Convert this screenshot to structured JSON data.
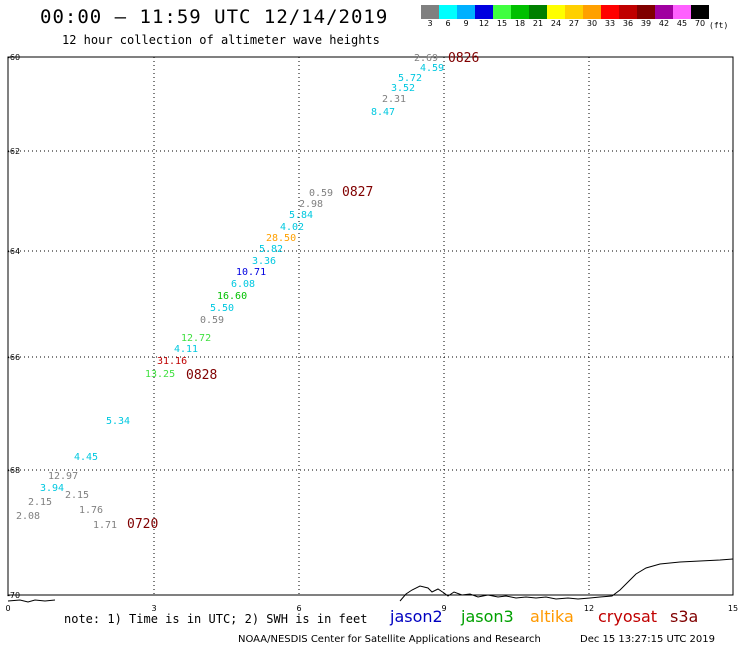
{
  "header": {
    "title": "00:00 – 11:59 UTC 12/14/2019",
    "subtitle": "12 hour collection of altimeter wave heights"
  },
  "legend_scale": {
    "unit": "(ft)",
    "items": [
      {
        "label": "3",
        "color": "#808080"
      },
      {
        "label": "6",
        "color": "#00ffff"
      },
      {
        "label": "9",
        "color": "#00b0ff"
      },
      {
        "label": "12",
        "color": "#0000e0"
      },
      {
        "label": "15",
        "color": "#40ff40"
      },
      {
        "label": "18",
        "color": "#00c000"
      },
      {
        "label": "21",
        "color": "#008000"
      },
      {
        "label": "24",
        "color": "#ffff00"
      },
      {
        "label": "27",
        "color": "#ffd000"
      },
      {
        "label": "30",
        "color": "#ffa000"
      },
      {
        "label": "33",
        "color": "#ff0000"
      },
      {
        "label": "36",
        "color": "#c00000"
      },
      {
        "label": "39",
        "color": "#800000"
      },
      {
        "label": "42",
        "color": "#a000a0"
      },
      {
        "label": "45",
        "color": "#ff60ff"
      },
      {
        "label": "70",
        "color": "#000000"
      }
    ]
  },
  "axes": {
    "x_ticks": [
      "0",
      "3",
      "6",
      "9",
      "12",
      "15"
    ],
    "y_ticks": [
      "-60",
      "-62",
      "-64",
      "-66",
      "-68",
      "-70"
    ]
  },
  "tracks": [
    {
      "time": "0826",
      "points": [
        {
          "v": "2.69",
          "c": "#808080"
        },
        {
          "v": "4.59",
          "c": "#00c8e0"
        },
        {
          "v": "5.72",
          "c": "#00c8e0"
        },
        {
          "v": "3.52",
          "c": "#00c8e0"
        },
        {
          "v": "2.31",
          "c": "#808080"
        },
        {
          "v": "8.47",
          "c": "#00c8e0"
        }
      ]
    },
    {
      "time": "0827",
      "points": [
        {
          "v": "0.59",
          "c": "#808080"
        },
        {
          "v": "2.98",
          "c": "#808080"
        },
        {
          "v": "5.84",
          "c": "#00c8e0"
        },
        {
          "v": "4.02",
          "c": "#00c8e0"
        },
        {
          "v": "28.50",
          "c": "#ffa000"
        },
        {
          "v": "5.82",
          "c": "#00c8e0"
        },
        {
          "v": "3.36",
          "c": "#00c8e0"
        },
        {
          "v": "10.71",
          "c": "#0000e0"
        },
        {
          "v": "6.08",
          "c": "#00c8e0"
        },
        {
          "v": "16.60",
          "c": "#00c000"
        },
        {
          "v": "5.50",
          "c": "#00c8e0"
        },
        {
          "v": "0.59",
          "c": "#808080"
        },
        {
          "v": "12.72",
          "c": "#40e040"
        },
        {
          "v": "4.11",
          "c": "#00c8e0"
        }
      ]
    },
    {
      "time": "0828",
      "points": [
        {
          "v": "31.16",
          "c": "#c00000"
        },
        {
          "v": "13.25",
          "c": "#40e040"
        }
      ]
    },
    {
      "time": "0720",
      "points": [
        {
          "v": "5.34",
          "c": "#00c8e0"
        },
        {
          "v": "4.45",
          "c": "#00c8e0"
        },
        {
          "v": "12.97",
          "c": "#808080"
        },
        {
          "v": "3.94",
          "c": "#00c8e0"
        },
        {
          "v": "2.15",
          "c": "#808080"
        },
        {
          "v": "2.15",
          "c": "#808080"
        },
        {
          "v": "2.08",
          "c": "#808080"
        },
        {
          "v": "1.76",
          "c": "#808080"
        },
        {
          "v": "1.71",
          "c": "#808080"
        }
      ]
    }
  ],
  "footer": {
    "note": "note: 1) Time is in UTC; 2) SWH is in feet",
    "satellites": [
      {
        "name": "jason2",
        "color": "#0000c0"
      },
      {
        "name": "jason3",
        "color": "#00a000"
      },
      {
        "name": "altika",
        "color": "#ff9900"
      },
      {
        "name": "cryosat",
        "color": "#c00000"
      },
      {
        "name": "s3a",
        "color": "#800000"
      }
    ],
    "credit": "NOAA/NESDIS Center for Satellite Applications and Research",
    "timestamp": "Dec 15 13:27:15 UTC 2019"
  }
}
